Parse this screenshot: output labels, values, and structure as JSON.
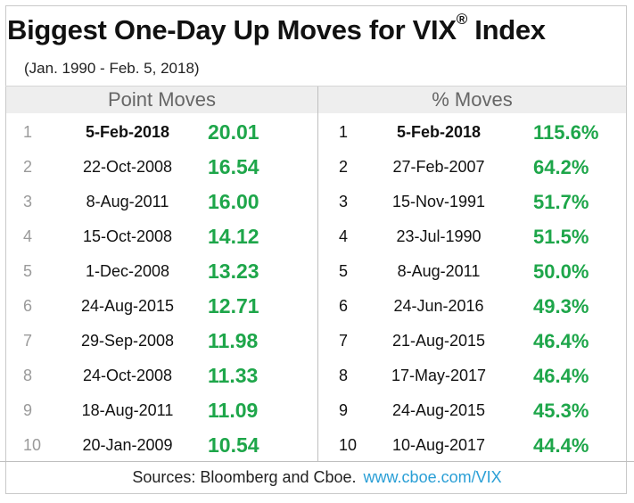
{
  "title": "Biggest One-Day Up Moves for VIX",
  "title_reg": "®",
  "title_suffix": "Index",
  "subtitle": "(Jan. 1990 - Feb. 5, 2018)",
  "left_header": "Point Moves",
  "right_header": "% Moves",
  "footer": {
    "source": "Sources: Bloomberg and Cboe.",
    "link": "www.cboe.com/VIX"
  },
  "colors": {
    "value_green": "#1ea64a",
    "header_bg": "#eeeeee",
    "link_blue": "#2a9fd6"
  },
  "chart_data": {
    "type": "table",
    "point_moves": [
      {
        "rank": "1",
        "date": "5-Feb-2018",
        "value": "20.01"
      },
      {
        "rank": "2",
        "date": "22-Oct-2008",
        "value": "16.54"
      },
      {
        "rank": "3",
        "date": "8-Aug-2011",
        "value": "16.00"
      },
      {
        "rank": "4",
        "date": "15-Oct-2008",
        "value": "14.12"
      },
      {
        "rank": "5",
        "date": "1-Dec-2008",
        "value": "13.23"
      },
      {
        "rank": "6",
        "date": "24-Aug-2015",
        "value": "12.71"
      },
      {
        "rank": "7",
        "date": "29-Sep-2008",
        "value": "11.98"
      },
      {
        "rank": "8",
        "date": "24-Oct-2008",
        "value": "11.33"
      },
      {
        "rank": "9",
        "date": "18-Aug-2011",
        "value": "11.09"
      },
      {
        "rank": "10",
        "date": "20-Jan-2009",
        "value": "10.54"
      }
    ],
    "percent_moves": [
      {
        "rank": "1",
        "date": "5-Feb-2018",
        "value": "115.6%"
      },
      {
        "rank": "2",
        "date": "27-Feb-2007",
        "value": "64.2%"
      },
      {
        "rank": "3",
        "date": "15-Nov-1991",
        "value": "51.7%"
      },
      {
        "rank": "4",
        "date": "23-Jul-1990",
        "value": "51.5%"
      },
      {
        "rank": "5",
        "date": "8-Aug-2011",
        "value": "50.0%"
      },
      {
        "rank": "6",
        "date": "24-Jun-2016",
        "value": "49.3%"
      },
      {
        "rank": "7",
        "date": "21-Aug-2015",
        "value": "46.4%"
      },
      {
        "rank": "8",
        "date": "17-May-2017",
        "value": "46.4%"
      },
      {
        "rank": "9",
        "date": "24-Aug-2015",
        "value": "45.3%"
      },
      {
        "rank": "10",
        "date": "10-Aug-2017",
        "value": "44.4%"
      }
    ]
  }
}
